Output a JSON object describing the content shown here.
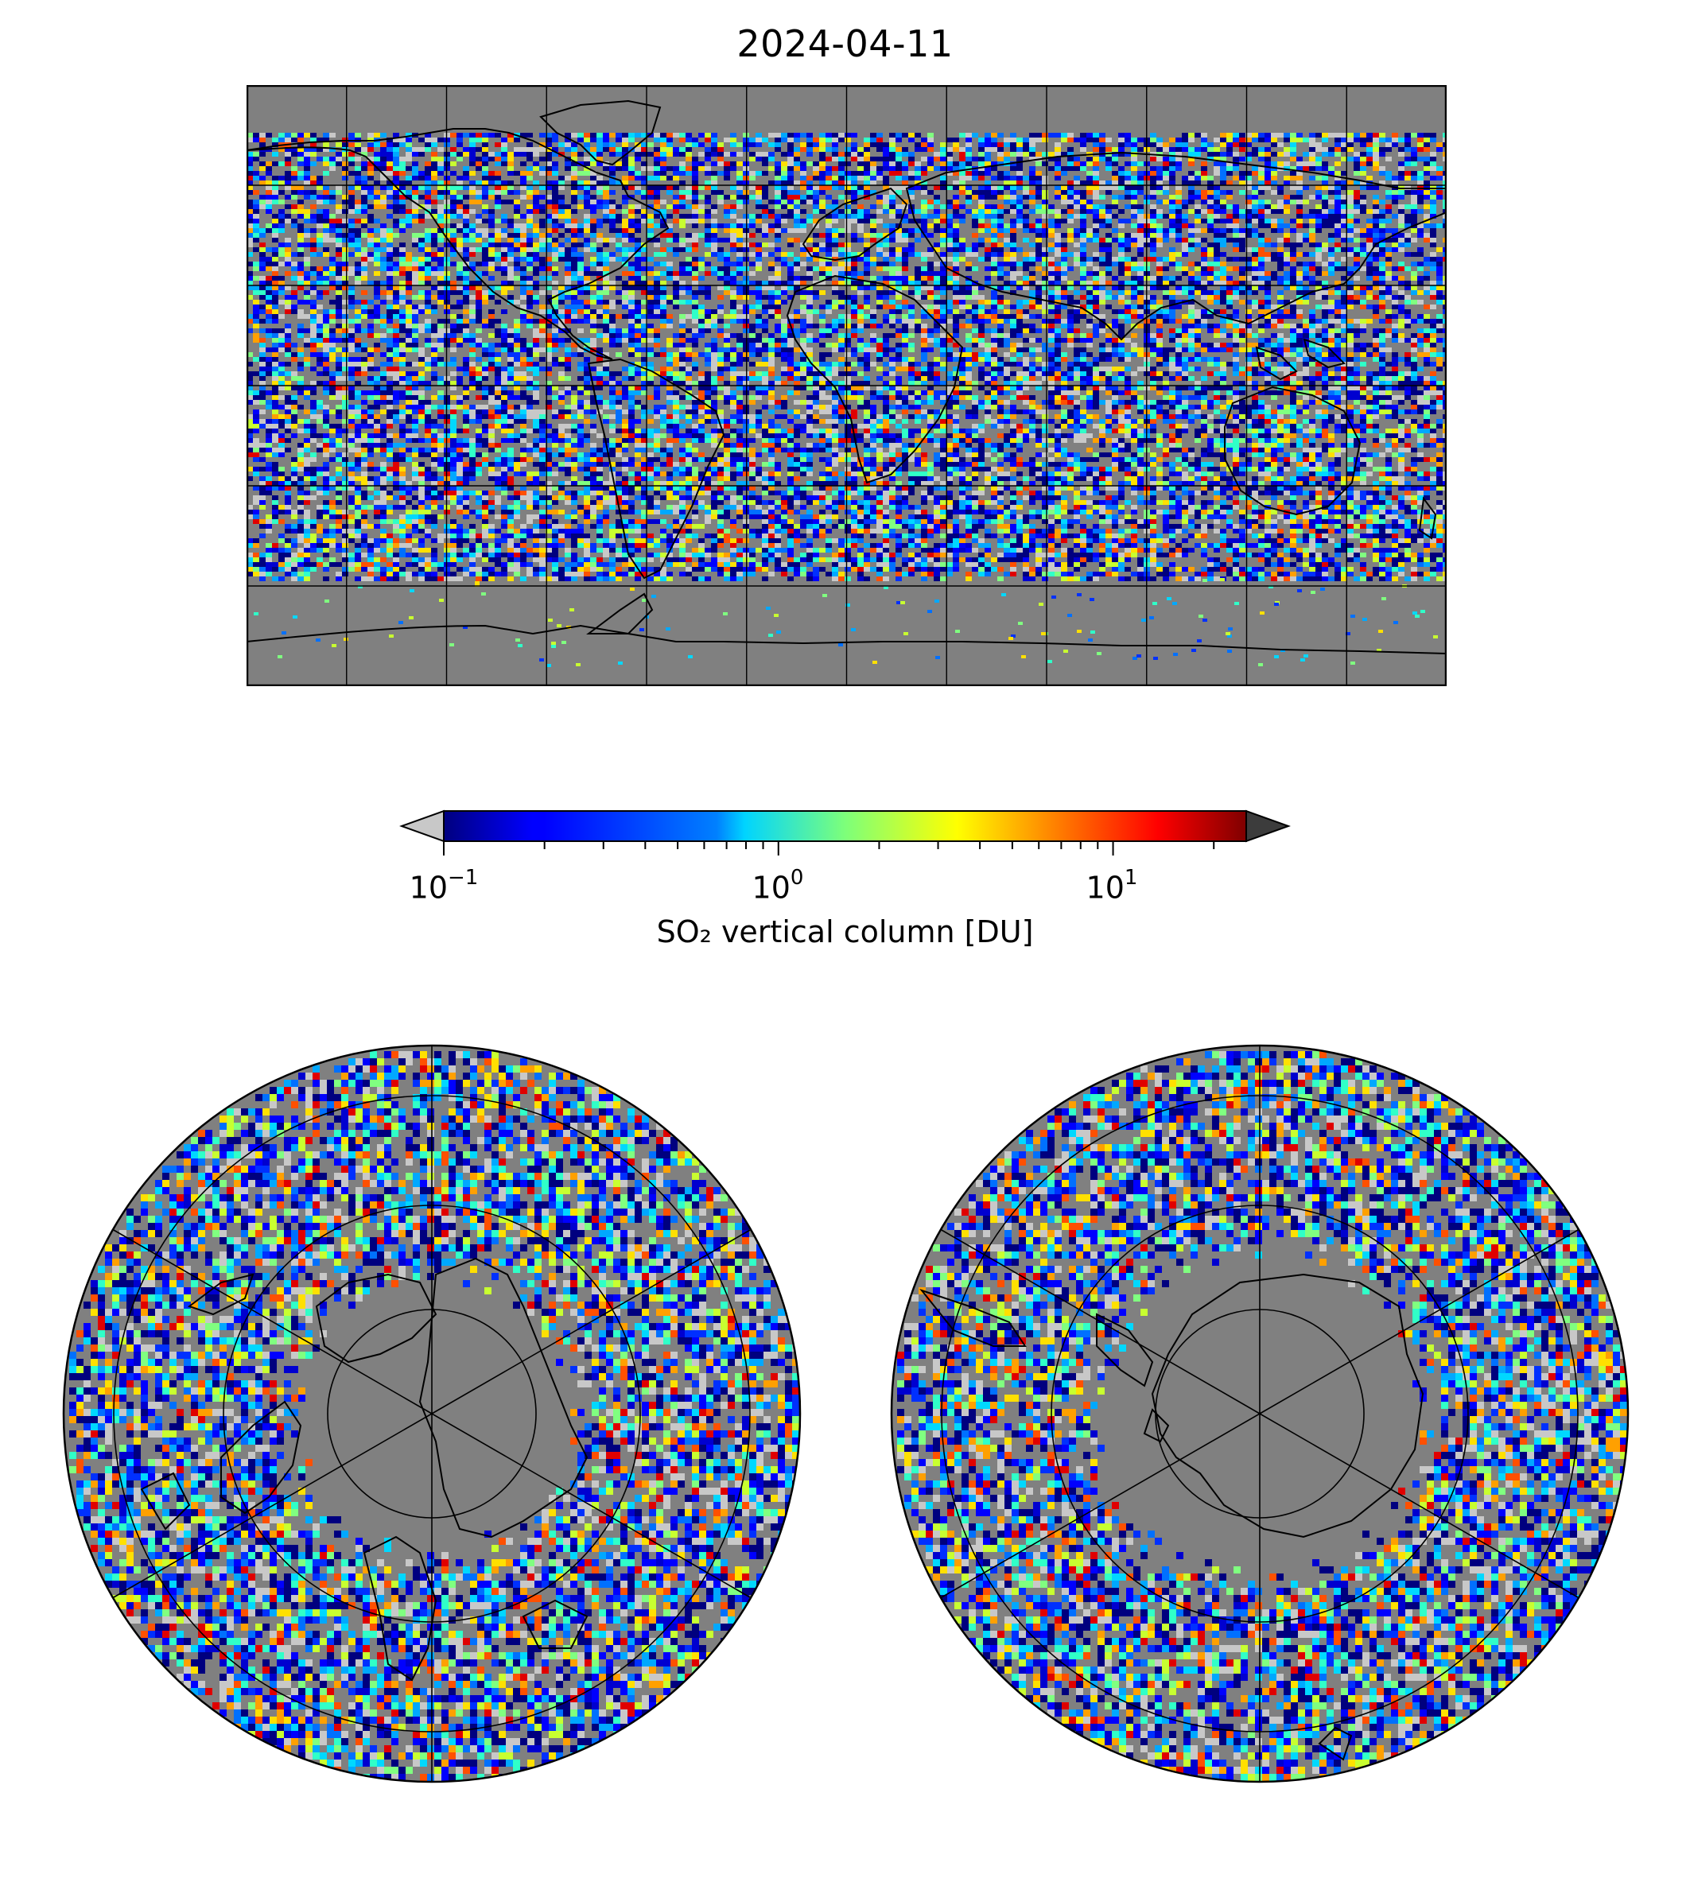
{
  "title": "2024-04-11",
  "colorbar": {
    "label": "SO₂ vertical column [DU]",
    "scale": "log",
    "range": [
      0.1,
      25
    ],
    "colormap": "jet",
    "extend": "both",
    "under_color": "#c8c8c8",
    "over_color": "#3c3c3c",
    "ticks": [
      {
        "value": 0.1,
        "base": "10",
        "exp": "−1"
      },
      {
        "value": 1,
        "base": "10",
        "exp": "0"
      },
      {
        "value": 10,
        "base": "10",
        "exp": "1"
      }
    ]
  },
  "panels": [
    {
      "name": "world",
      "projection": "plate-carree",
      "gridlines": "30° lon/lat",
      "coastlines": true
    },
    {
      "name": "north-pole",
      "projection": "north-polar-stereographic",
      "gridlines": true,
      "coastlines": true
    },
    {
      "name": "south-pole",
      "projection": "south-polar-stereographic",
      "gridlines": true,
      "coastlines": true
    }
  ],
  "colors": {
    "no_data": "#808080",
    "gridline": "#000000",
    "coastline": "#000000"
  }
}
